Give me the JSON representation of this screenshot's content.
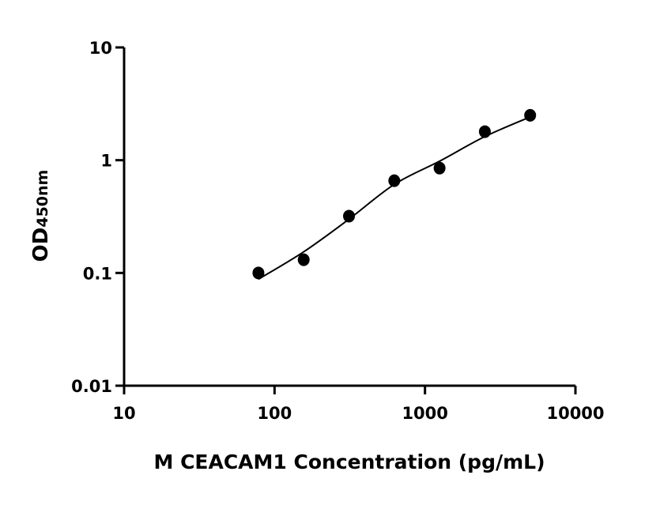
{
  "chart_data": {
    "type": "scatter",
    "title": "",
    "xlabel": "M CEACAM1 Concentration (pg/mL)",
    "ylabel": "OD",
    "ylabel_subscript": "450nm",
    "x_scale": "log",
    "y_scale": "log",
    "xlim": [
      10,
      10000
    ],
    "ylim": [
      0.01,
      10
    ],
    "x_ticks": [
      10,
      100,
      1000,
      10000
    ],
    "x_tick_labels": [
      "10",
      "100",
      "1000",
      "10000"
    ],
    "y_ticks": [
      0.01,
      0.1,
      1,
      10
    ],
    "y_tick_labels": [
      "0.01",
      "0.1",
      "1",
      "10"
    ],
    "grid": false,
    "legend": "none",
    "points": {
      "x": [
        78.125,
        156.25,
        312.5,
        625,
        1250,
        2500,
        5000
      ],
      "y": [
        0.1,
        0.131,
        0.319,
        0.658,
        0.851,
        1.79,
        2.5
      ]
    },
    "fit_curve": {
      "x": [
        78.125,
        156.25,
        312.5,
        625,
        1250,
        2500,
        5000
      ],
      "y": [
        0.088,
        0.154,
        0.3,
        0.61,
        0.98,
        1.62,
        2.42
      ]
    },
    "colors": {
      "points": "#000000",
      "curve": "#000000",
      "axes": "#000000"
    }
  }
}
